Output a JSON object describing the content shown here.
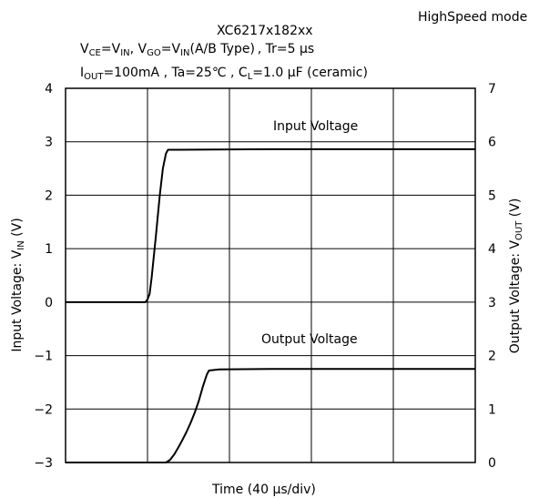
{
  "header": {
    "mode": "HighSpeed mode",
    "title": "XC6217x182xx",
    "cond1": {
      "p1": "V",
      "s1": "CE",
      "p2": "=V",
      "s2": "IN",
      "p3": ", V",
      "s3": "GO",
      "p4": "=V",
      "s4": "IN",
      "p5": "(A/B Type) , Tr=5 μs"
    },
    "cond2": {
      "p1": "I",
      "s1": "OUT",
      "p2": "=100mA , Ta=25℃ , C",
      "s2": "L",
      "p3": "=1.0 μF (ceramic)"
    }
  },
  "axes": {
    "left_label": {
      "p1": "Input Voltage: V",
      "sub": "IN",
      "p2": " (V)"
    },
    "right_label": {
      "p1": "Output Voltage: V",
      "sub": "OUT",
      "p2": " (V)"
    },
    "x_label": "Time (40 μs/div)"
  },
  "chart_data": {
    "type": "line",
    "title": "XC6217x182xx",
    "xlabel": "Time (40 μs/div)",
    "x_unit": "μs",
    "xlim": [
      0,
      400
    ],
    "grid": true,
    "left_axis": {
      "label": "Input Voltage: VIN (V)",
      "ylim": [
        -3,
        4
      ],
      "ticks": [
        4,
        3,
        2,
        1,
        0,
        -1,
        -2,
        -3
      ]
    },
    "right_axis": {
      "label": "Output Voltage: VOUT (V)",
      "ylim": [
        0,
        7
      ],
      "ticks": [
        7,
        6,
        5,
        4,
        3,
        2,
        1,
        0
      ]
    },
    "series": [
      {
        "name": "Input Voltage",
        "axis": "left",
        "color": "#000000",
        "x": [
          0,
          78,
          80,
          82,
          84,
          88,
          92,
          95,
          98,
          100,
          110,
          200,
          300,
          400
        ],
        "y": [
          0,
          0,
          0.05,
          0.15,
          0.45,
          1.2,
          2.0,
          2.5,
          2.78,
          2.85,
          2.85,
          2.86,
          2.86,
          2.86
        ]
      },
      {
        "name": "Output Voltage",
        "axis": "right",
        "color": "#000000",
        "x": [
          0,
          98,
          102,
          106,
          110,
          114,
          118,
          122,
          126,
          130,
          134,
          138,
          140,
          150,
          200,
          300,
          400
        ],
        "y": [
          0,
          0,
          0.05,
          0.15,
          0.28,
          0.42,
          0.57,
          0.74,
          0.93,
          1.15,
          1.42,
          1.65,
          1.72,
          1.74,
          1.75,
          1.75,
          1.75
        ]
      }
    ],
    "annotations": [
      "Input Voltage",
      "Output Voltage"
    ]
  }
}
